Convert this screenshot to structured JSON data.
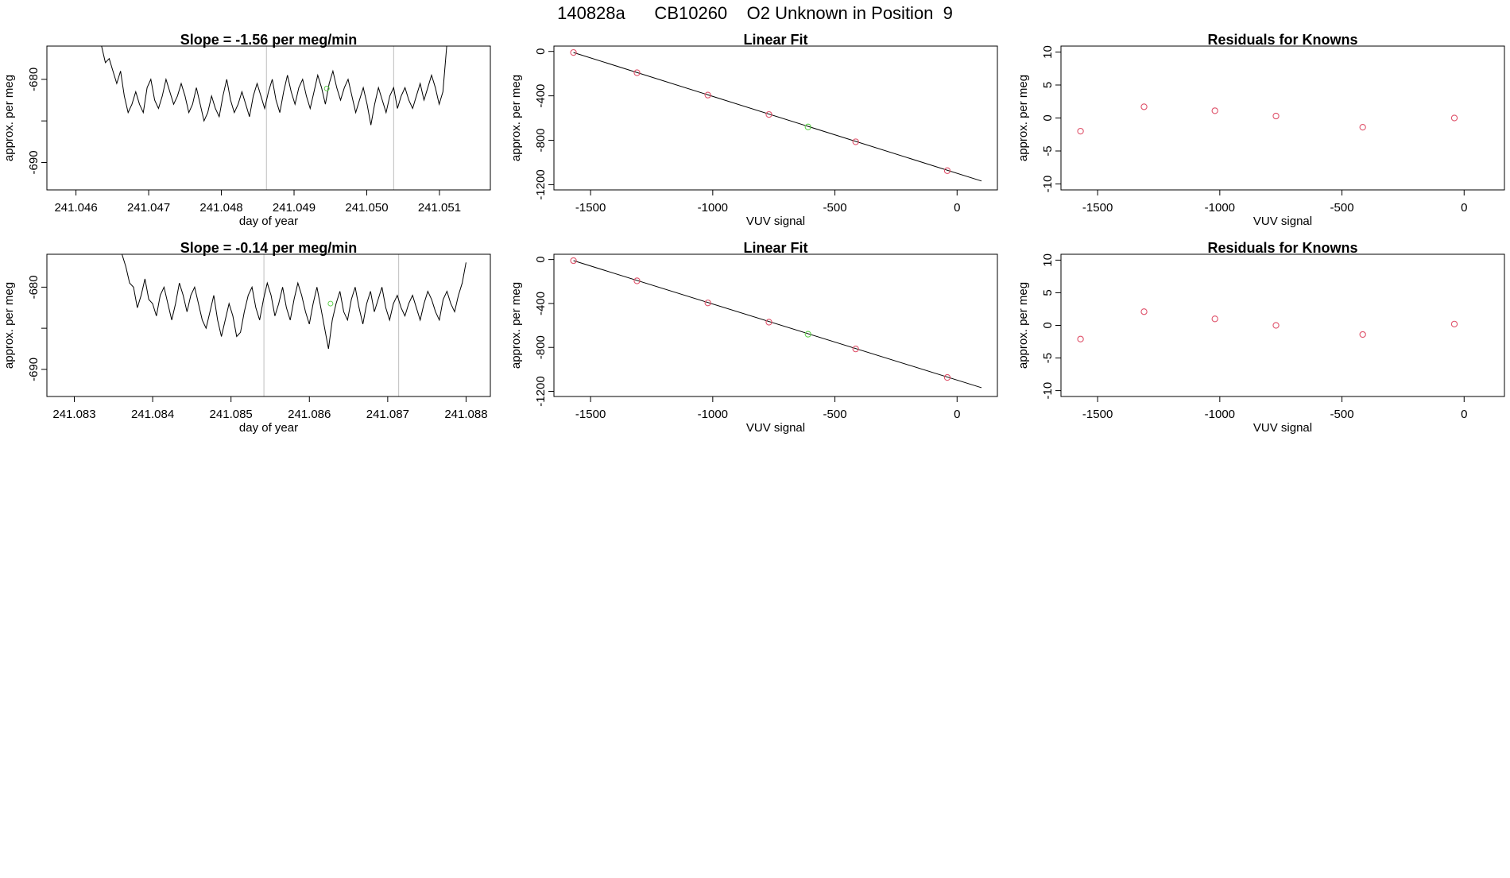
{
  "page_title": "140828a      CB10260    O2 Unknown in Position  9",
  "colors": {
    "line": "#000000",
    "box": "#000000",
    "vline": "#bebebe",
    "known_point": "#df536b",
    "unknown_point": "#61d04f"
  },
  "chart_data": [
    {
      "type": "line",
      "title": "Slope =  -1.56  per meg/min",
      "xlabel": "day of year",
      "ylabel": "approx. per meg",
      "xlim": [
        241.0456,
        241.0517
      ],
      "ylim": [
        -693.3,
        -676.0
      ],
      "xticks": [
        241.046,
        241.047,
        241.048,
        241.049,
        241.05,
        241.051
      ],
      "xtick_labels": [
        "241.046",
        "241.047",
        "241.048",
        "241.049",
        "241.050",
        "241.051"
      ],
      "yticks": [
        -690,
        -685,
        -680,
        -675
      ],
      "ytick_labels": [
        "-690",
        "",
        "-680",
        ""
      ],
      "vertical_lines_x": [
        241.04862,
        241.05037
      ],
      "unknown_point": {
        "x": 241.04945,
        "y": -681.1
      },
      "series": [
        {
          "x_start": 241.0463,
          "x_end": 241.0511,
          "values": [
            -670,
            -676,
            -678,
            -677.5,
            -679,
            -680.5,
            -679,
            -682,
            -684,
            -683,
            -681.5,
            -683,
            -684,
            -681,
            -680,
            -682.5,
            -683.5,
            -682,
            -680,
            -681.5,
            -683,
            -682,
            -680.5,
            -682,
            -684,
            -683,
            -681,
            -683,
            -685,
            -684,
            -682,
            -683.5,
            -684.5,
            -682,
            -680,
            -682.5,
            -684,
            -683,
            -681.5,
            -683,
            -684.5,
            -682,
            -680.5,
            -682,
            -683.5,
            -681.5,
            -680,
            -682.5,
            -684,
            -681.5,
            -679.5,
            -681.5,
            -683,
            -681,
            -680,
            -682,
            -683.5,
            -681.5,
            -679.5,
            -681,
            -683,
            -680.5,
            -679,
            -681,
            -682.5,
            -681,
            -680,
            -682,
            -684,
            -682.5,
            -681,
            -683,
            -685.5,
            -683,
            -681,
            -682.5,
            -684,
            -682,
            -681,
            -683.5,
            -682,
            -681,
            -682.5,
            -683.5,
            -682,
            -680.5,
            -682.5,
            -681,
            -679.5,
            -681,
            -683,
            -681.5,
            -676
          ]
        }
      ]
    },
    {
      "type": "scatter",
      "title": "Linear Fit",
      "xlabel": "VUV signal",
      "ylabel": "approx. per meg",
      "xlim": [
        -1650,
        165
      ],
      "ylim": [
        -1247,
        48
      ],
      "xticks": [
        -1500,
        -1000,
        -500,
        0
      ],
      "yticks": [
        0,
        -400,
        -800,
        -1200
      ],
      "ytick_labels": [
        "0",
        "-400",
        "-800",
        "-1200"
      ],
      "fit_line": {
        "x": [
          -1570,
          100
        ],
        "y": [
          -10,
          -1167
        ]
      },
      "knowns": {
        "x": [
          -1570,
          -1310,
          -1020,
          -770,
          -415,
          -40
        ],
        "y": [
          -10,
          -192,
          -393,
          -568,
          -814,
          -1074
        ]
      },
      "unknown": {
        "x": [
          -610
        ],
        "y": [
          -680
        ]
      }
    },
    {
      "type": "scatter",
      "title": "Residuals for Knowns",
      "xlabel": "VUV signal",
      "ylabel": "approx. per meg",
      "xlim": [
        -1650,
        165
      ],
      "ylim": [
        -10.9,
        10.9
      ],
      "xticks": [
        -1500,
        -1000,
        -500,
        0
      ],
      "yticks": [
        10,
        5,
        0,
        -5,
        -10
      ],
      "residuals": {
        "x": [
          -1570,
          -1310,
          -1020,
          -770,
          -415,
          -40
        ],
        "y": [
          -2.0,
          1.7,
          1.1,
          0.3,
          -1.4,
          0.0
        ]
      }
    },
    {
      "type": "line",
      "title": "Slope =  -0.14  per meg/min",
      "xlabel": "day of year",
      "ylabel": "approx. per meg",
      "xlim": [
        241.08265,
        241.08831
      ],
      "ylim": [
        -693.3,
        -676.0
      ],
      "xticks": [
        241.083,
        241.084,
        241.085,
        241.086,
        241.087,
        241.088
      ],
      "xtick_labels": [
        "241.083",
        "241.084",
        "241.085",
        "241.086",
        "241.087",
        "241.088"
      ],
      "yticks": [
        -690,
        -685,
        -680,
        -675
      ],
      "ytick_labels": [
        "-690",
        "",
        "-680",
        ""
      ],
      "vertical_lines_x": [
        241.08542,
        241.08714
      ],
      "unknown_point": {
        "x": 241.08627,
        "y": -682.0
      },
      "series": [
        {
          "x_start": 241.08356,
          "x_end": 241.088,
          "values": [
            -670,
            -676,
            -677.5,
            -679.5,
            -680,
            -682.5,
            -681,
            -679,
            -681.5,
            -682,
            -683.5,
            -681,
            -680,
            -682,
            -684,
            -682,
            -679.5,
            -681,
            -683,
            -681,
            -680,
            -682,
            -684,
            -685,
            -683,
            -681,
            -684,
            -686,
            -684,
            -682,
            -683.5,
            -686,
            -685.5,
            -683,
            -681,
            -680,
            -682.5,
            -684,
            -681.5,
            -679.5,
            -681,
            -683.5,
            -682,
            -680,
            -682.5,
            -684,
            -681.5,
            -679.5,
            -681,
            -683,
            -684.5,
            -682,
            -680,
            -682.5,
            -685,
            -687.5,
            -684,
            -682,
            -680.5,
            -683,
            -684,
            -681.5,
            -680,
            -682.5,
            -684.5,
            -682,
            -680.5,
            -683,
            -681.5,
            -680,
            -682.5,
            -684,
            -682,
            -681,
            -682.5,
            -683.5,
            -682,
            -681,
            -682.5,
            -684,
            -682,
            -680.5,
            -681.5,
            -683,
            -684,
            -681.5,
            -680.5,
            -682,
            -683,
            -681,
            -679.5,
            -677
          ]
        }
      ]
    },
    {
      "type": "scatter",
      "title": "Linear Fit",
      "xlabel": "VUV signal",
      "ylabel": "approx. per meg",
      "xlim": [
        -1650,
        165
      ],
      "ylim": [
        -1247,
        48
      ],
      "xticks": [
        -1500,
        -1000,
        -500,
        0
      ],
      "yticks": [
        0,
        -400,
        -800,
        -1200
      ],
      "ytick_labels": [
        "0",
        "-400",
        "-800",
        "-1200"
      ],
      "fit_line": {
        "x": [
          -1570,
          100
        ],
        "y": [
          -10,
          -1167
        ]
      },
      "knowns": {
        "x": [
          -1570,
          -1310,
          -1020,
          -770,
          -415,
          -40
        ],
        "y": [
          -10,
          -194,
          -395,
          -570,
          -814,
          -1074
        ]
      },
      "unknown": {
        "x": [
          -610
        ],
        "y": [
          -680
        ]
      }
    },
    {
      "type": "scatter",
      "title": "Residuals for Knowns",
      "xlabel": "VUV signal",
      "ylabel": "approx. per meg",
      "xlim": [
        -1650,
        165
      ],
      "ylim": [
        -10.9,
        10.9
      ],
      "xticks": [
        -1500,
        -1000,
        -500,
        0
      ],
      "yticks": [
        10,
        5,
        0,
        -5,
        -10
      ],
      "residuals": {
        "x": [
          -1570,
          -1310,
          -1020,
          -770,
          -415,
          -40
        ],
        "y": [
          -2.1,
          2.1,
          1.0,
          0.0,
          -1.4,
          0.2
        ]
      }
    }
  ]
}
